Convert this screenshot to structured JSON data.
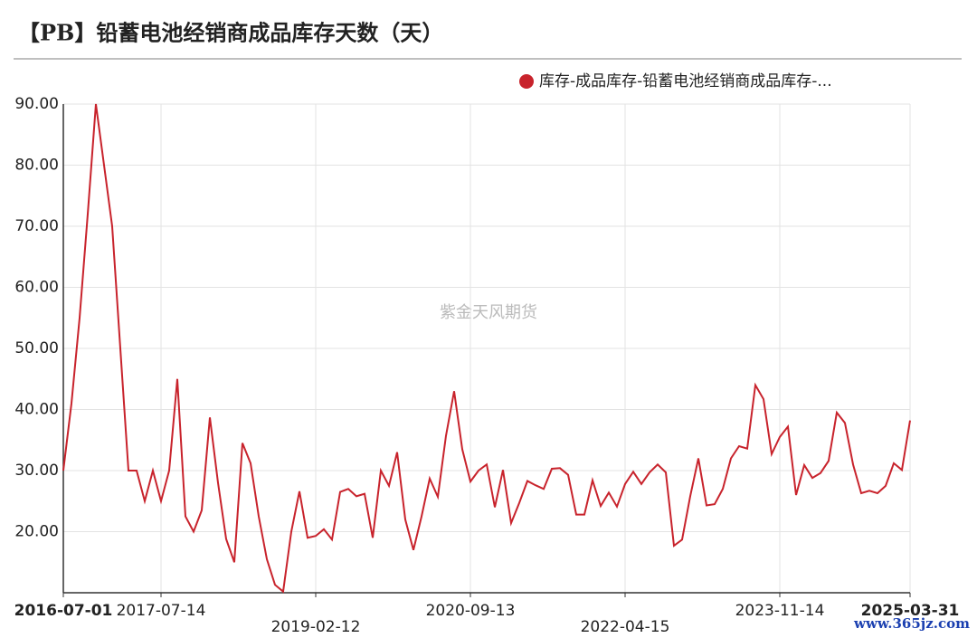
{
  "chart_data": {
    "type": "line",
    "title": "【PB】铅蓄电池经销商成品库存天数（天）",
    "watermark": "紫金天风期货",
    "site_watermark": "www.365jz.com",
    "categories": [
      "2016-07-01",
      null,
      null,
      null,
      null,
      null,
      null,
      null,
      null,
      null,
      null,
      null,
      "2017-07-14",
      null,
      null,
      null,
      null,
      null,
      null,
      null,
      null,
      null,
      null,
      null,
      null,
      null,
      null,
      null,
      null,
      null,
      null,
      "2019-02-12",
      null,
      null,
      null,
      null,
      null,
      null,
      null,
      null,
      null,
      null,
      null,
      null,
      null,
      null,
      null,
      null,
      null,
      null,
      "2020-09-13",
      null,
      null,
      null,
      null,
      null,
      null,
      null,
      null,
      null,
      null,
      null,
      null,
      null,
      null,
      null,
      null,
      null,
      null,
      "2022-04-15",
      null,
      null,
      null,
      null,
      null,
      null,
      null,
      null,
      null,
      null,
      null,
      null,
      null,
      null,
      null,
      null,
      null,
      null,
      "2023-11-14",
      null,
      null,
      null,
      null,
      null,
      null,
      null,
      null,
      null,
      null,
      null,
      null,
      null,
      null,
      null,
      "2025-03-31"
    ],
    "series": [
      {
        "name": "库存-成品库存-铅蓄电池经销商成品库存-...",
        "color": "#c8232c",
        "values": [
          30,
          41,
          55,
          72,
          90,
          80,
          70,
          50,
          30,
          30,
          25,
          30,
          25,
          30,
          45,
          22.5,
          20,
          23.5,
          38.7,
          28,
          18.8,
          15,
          34.5,
          31.2,
          22.5,
          15.5,
          11.3,
          10.2,
          20,
          26.6,
          19,
          19.3,
          20.4,
          18.7,
          26.5,
          27,
          25.8,
          26.2,
          19,
          30,
          27.5,
          33,
          22,
          17,
          22.5,
          28.7,
          25.7,
          35.7,
          43,
          33.5,
          28.2,
          30,
          31,
          24,
          30.1,
          21.4,
          24.7,
          28.3,
          27.6,
          27,
          30.3,
          30.4,
          29.3,
          22.8,
          22.8,
          28.4,
          24.2,
          26.4,
          24.1,
          27.8,
          29.8,
          27.8,
          29.7,
          31,
          29.7,
          17.7,
          18.7,
          25.8,
          32,
          24.3,
          24.5,
          27,
          32,
          34,
          33.6,
          44,
          41.7,
          32.7,
          35.5,
          37.2,
          26,
          30.9,
          28.8,
          29.6,
          31.6,
          39.5,
          37.8,
          31,
          26.3,
          26.7,
          26.3,
          27.5,
          31.2,
          30.1,
          38.2
        ]
      }
    ],
    "ylim": [
      10,
      90
    ],
    "yticks": [
      {
        "value": 20,
        "label": "20.00"
      },
      {
        "value": 30,
        "label": "30.00"
      },
      {
        "value": 40,
        "label": "40.00"
      },
      {
        "value": 50,
        "label": "50.00"
      },
      {
        "value": 60,
        "label": "60.00"
      },
      {
        "value": 70,
        "label": "70.00"
      },
      {
        "value": 80,
        "label": "80.00"
      },
      {
        "value": 90,
        "label": "90.00"
      }
    ],
    "grid": true,
    "legend": "top-right"
  }
}
